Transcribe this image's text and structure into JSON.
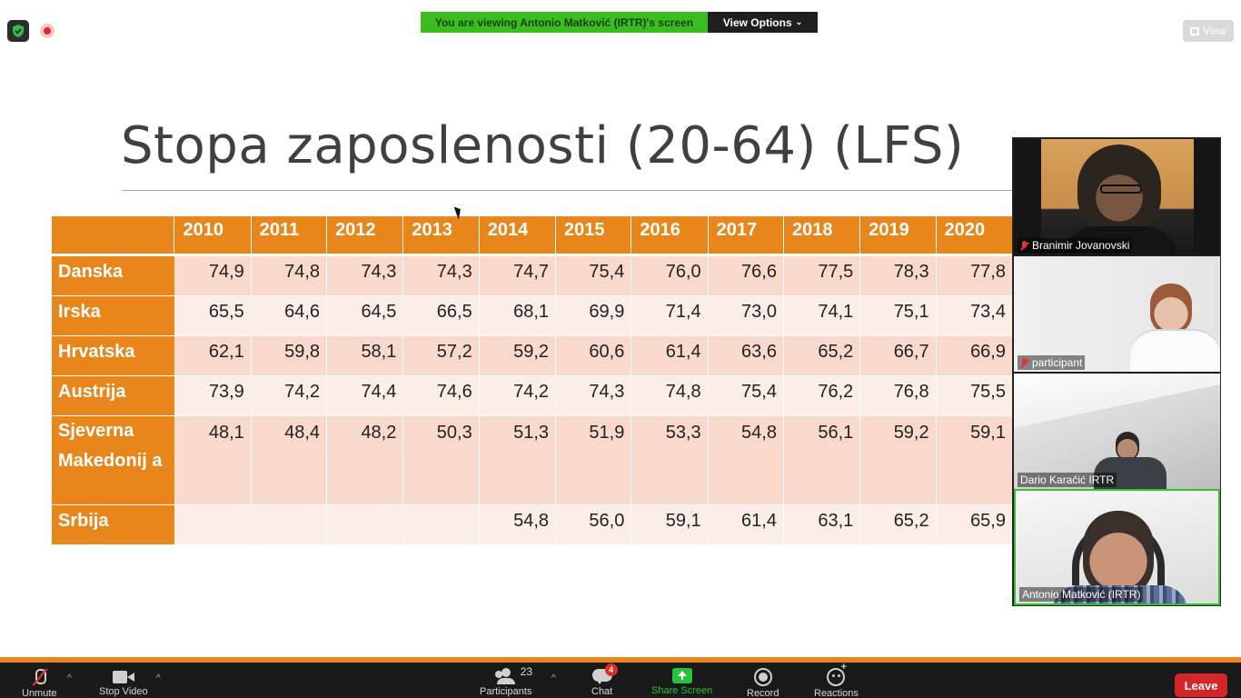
{
  "banner": {
    "viewing_text": "You are viewing Antonio Matković (IRTR)'s screen",
    "view_options_label": "View Options",
    "view_button_label": "View"
  },
  "slide": {
    "title": "Stopa zaposlenosti (20-64) (LFS)",
    "table": {
      "years": [
        "2010",
        "2011",
        "2012",
        "2013",
        "2014",
        "2015",
        "2016",
        "2017",
        "2018",
        "2019",
        "2020"
      ],
      "rows": [
        {
          "country": "Danska",
          "values": [
            "74,9",
            "74,8",
            "74,3",
            "74,3",
            "74,7",
            "75,4",
            "76,0",
            "76,6",
            "77,5",
            "78,3",
            "77,8"
          ]
        },
        {
          "country": "Irska",
          "values": [
            "65,5",
            "64,6",
            "64,5",
            "66,5",
            "68,1",
            "69,9",
            "71,4",
            "73,0",
            "74,1",
            "75,1",
            "73,4"
          ]
        },
        {
          "country": "Hrvatska",
          "values": [
            "62,1",
            "59,8",
            "58,1",
            "57,2",
            "59,2",
            "60,6",
            "61,4",
            "63,6",
            "65,2",
            "66,7",
            "66,9"
          ]
        },
        {
          "country": "Austrija",
          "values": [
            "73,9",
            "74,2",
            "74,4",
            "74,6",
            "74,2",
            "74,3",
            "74,8",
            "75,4",
            "76,2",
            "76,8",
            "75,5"
          ]
        },
        {
          "country": "Sjeverna Makedonij a",
          "values": [
            "48,1",
            "48,4",
            "48,2",
            "50,3",
            "51,3",
            "51,9",
            "53,3",
            "54,8",
            "56,1",
            "59,2",
            "59,1"
          ]
        },
        {
          "country": "Srbija",
          "values": [
            "",
            "",
            "",
            "",
            "54,8",
            "56,0",
            "59,1",
            "61,4",
            "63,1",
            "65,2",
            "65,9"
          ]
        }
      ]
    }
  },
  "participants_videos": [
    {
      "name": "Branimir Jovanovski",
      "muted": true
    },
    {
      "name": "participant",
      "muted": true
    },
    {
      "name": "Dario Karačić IRTR",
      "muted": false
    },
    {
      "name": "Antonio Matković (IRTR)",
      "muted": false,
      "active_speaker": true
    }
  ],
  "toolbar": {
    "unmute_label": "Unmute",
    "stop_video_label": "Stop Video",
    "participants_label": "Participants",
    "participants_count": "23",
    "chat_label": "Chat",
    "chat_badge": "4",
    "share_screen_label": "Share Screen",
    "record_label": "Record",
    "reactions_label": "Reactions",
    "leave_label": "Leave"
  }
}
